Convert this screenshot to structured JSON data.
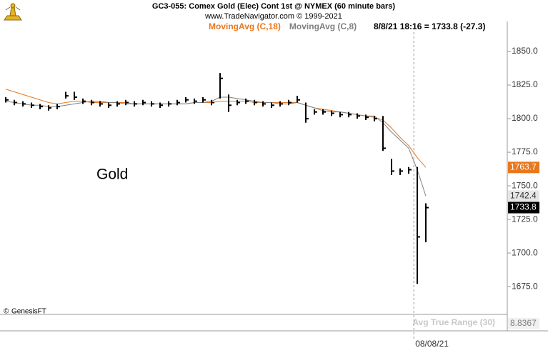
{
  "chart_data": {
    "type": "ohlc",
    "title": "GC3-055:  Comex Gold (Elec) Cont 1st @ NYMEX  (60 minute bars)",
    "subtitle": "www.TradeNavigator.com © 1999-2021",
    "info": "8/8/21 18:16 = 1733.8 (-27.3)",
    "label": "Gold",
    "watermark": "GenesisFT",
    "xlim": [
      -0.67,
      58.5
    ],
    "ylim": [
      1654.3,
      1864.4
    ],
    "yticks": [
      {
        "value": 1675,
        "label": "1675.0"
      },
      {
        "value": 1700,
        "label": "1700.0"
      },
      {
        "value": 1725,
        "label": "1725.0"
      },
      {
        "value": 1750,
        "label": "1750.0"
      },
      {
        "value": 1775,
        "label": "1775.0"
      },
      {
        "value": 1800,
        "label": "1800.0"
      },
      {
        "value": 1825,
        "label": "1825.0"
      },
      {
        "value": 1850,
        "label": "1850.0"
      }
    ],
    "xticks": [
      {
        "value": 47.6,
        "label": "08/08/21"
      }
    ],
    "bars": {
      "color": "#000000",
      "high": [
        1816,
        1814,
        1813,
        1812,
        1811,
        1810,
        1811,
        1820,
        1820,
        1815,
        1814,
        1813,
        1812,
        1813,
        1814,
        1813,
        1814,
        1813,
        1812,
        1813,
        1814,
        1816,
        1815,
        1816,
        1814,
        1834,
        1818,
        1814,
        1815,
        1814,
        1813,
        1812,
        1813,
        1814,
        1817,
        1812,
        1807,
        1807,
        1806,
        1805,
        1805,
        1804,
        1803,
        1802,
        1802,
        1770,
        1763,
        1764,
        1764,
        1737
      ],
      "low": [
        1812,
        1810,
        1809,
        1808,
        1807,
        1806,
        1807,
        1815,
        1814,
        1811,
        1810,
        1809,
        1808,
        1809,
        1810,
        1809,
        1810,
        1809,
        1808,
        1809,
        1810,
        1812,
        1811,
        1812,
        1810,
        1815,
        1805,
        1810,
        1811,
        1810,
        1809,
        1808,
        1809,
        1810,
        1812,
        1797,
        1803,
        1803,
        1802,
        1801,
        1801,
        1800,
        1799,
        1798,
        1776,
        1758,
        1758,
        1759,
        1677,
        1708
      ],
      "close": [
        1814,
        1812,
        1811,
        1810,
        1809,
        1808,
        1809,
        1817,
        1816,
        1813,
        1812,
        1811,
        1810,
        1811,
        1812,
        1811,
        1812,
        1811,
        1810,
        1811,
        1812,
        1814,
        1813,
        1814,
        1812,
        1830,
        1810,
        1812,
        1813,
        1812,
        1811,
        1810,
        1811,
        1812,
        1814,
        1800,
        1805,
        1805,
        1804,
        1803,
        1803,
        1802,
        1801,
        1800,
        1778,
        1761,
        1761,
        1762,
        1712,
        1733.8
      ]
    },
    "series": [
      {
        "name": "MovingAvg (C,18)",
        "color": "#e8781e",
        "values": [
          1822,
          1820,
          1818,
          1816,
          1814,
          1812,
          1811,
          1812,
          1813,
          1813,
          1812,
          1812,
          1812,
          1812,
          1812,
          1811,
          1811,
          1811,
          1811,
          1811,
          1811,
          1811,
          1812,
          1812,
          1812,
          1813,
          1813,
          1813,
          1813,
          1812,
          1812,
          1812,
          1812,
          1812,
          1812,
          1810,
          1808,
          1807,
          1806,
          1805,
          1804,
          1803,
          1802,
          1801,
          1799,
          1793,
          1786,
          1780,
          1771,
          1763.7
        ]
      },
      {
        "name": "MovingAvg (C,8)",
        "color": "#808080",
        "values": [
          1813,
          1812,
          1811,
          1810,
          1810,
          1809,
          1809,
          1810,
          1811,
          1812,
          1813,
          1813,
          1812,
          1812,
          1811,
          1811,
          1811,
          1811,
          1811,
          1811,
          1811,
          1811,
          1812,
          1812,
          1813,
          1816,
          1816,
          1815,
          1814,
          1813,
          1812,
          1812,
          1811,
          1811,
          1812,
          1810,
          1808,
          1806,
          1805,
          1805,
          1804,
          1803,
          1802,
          1802,
          1797,
          1790,
          1784,
          1778,
          1762,
          1742.4
        ]
      }
    ],
    "atr": {
      "name": "Avg True Range (30)",
      "value": 8.8367
    }
  }
}
